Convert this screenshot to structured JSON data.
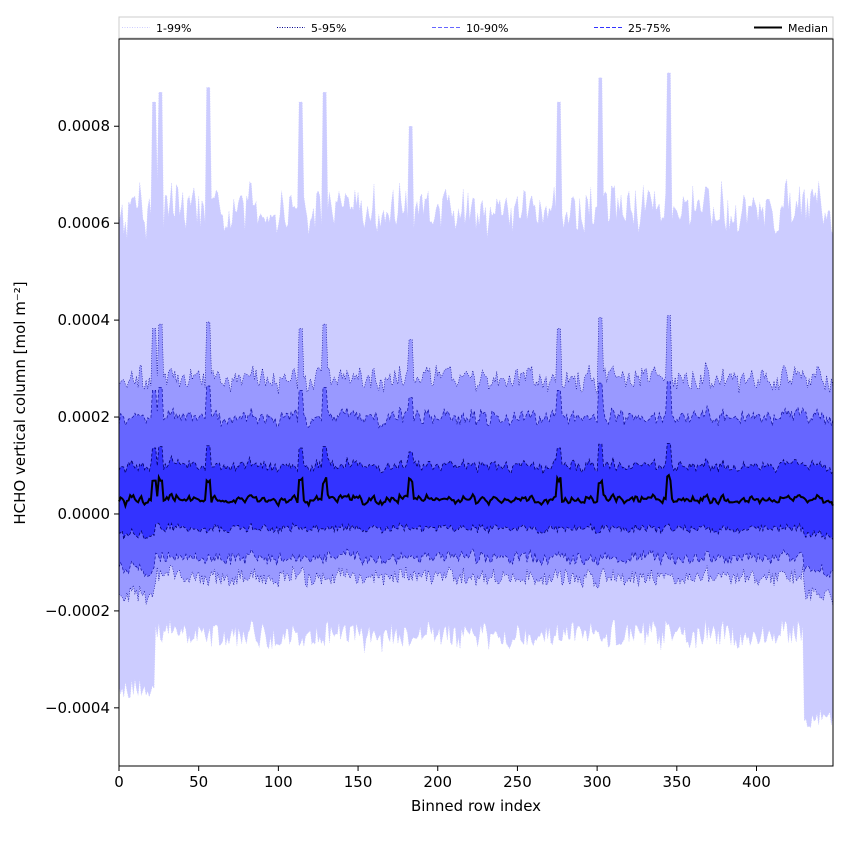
{
  "chart_data": {
    "type": "area",
    "title": "",
    "xlabel": "Binned row index",
    "ylabel": "HCHO vertical column [mol m⁻²]",
    "xlim": [
      0,
      448
    ],
    "ylim": [
      -0.00052,
      0.00098
    ],
    "x_ticks": [
      0,
      50,
      100,
      150,
      200,
      250,
      300,
      350,
      400
    ],
    "x_tick_labels": [
      "0",
      "50",
      "100",
      "150",
      "200",
      "250",
      "300",
      "350",
      "400"
    ],
    "y_ticks": [
      -0.0004,
      -0.0002,
      0.0,
      0.0002,
      0.0004,
      0.0006,
      0.0008
    ],
    "y_tick_labels": [
      "−0.0004",
      "−0.0002",
      "0.0000",
      "0.0002",
      "0.0004",
      "0.0006",
      "0.0008"
    ],
    "grid": false,
    "legend_position": "top, outside plot, spanning full width",
    "legend": [
      {
        "label": "1-99%",
        "color": "#ccccff",
        "style": "dotted"
      },
      {
        "label": "5-95%",
        "color": "#00008b",
        "style": "dotted"
      },
      {
        "label": "10-90%",
        "color": "#6666ff",
        "style": "dashed"
      },
      {
        "label": "25-75%",
        "color": "#3333ff",
        "style": "dashed"
      },
      {
        "label": "Median",
        "color": "#000000",
        "style": "solid"
      }
    ],
    "bands": [
      {
        "name": "1-99%",
        "fill": "#ccccff",
        "upper_mean": 0.00063,
        "lower_mean": -0.00025,
        "upper_amp": 6e-05,
        "lower_amp": 3e-05
      },
      {
        "name": "5-95%",
        "fill": "#9999ff",
        "upper_mean": 0.00028,
        "lower_mean": -0.00013,
        "upper_amp": 3e-05,
        "lower_amp": 2e-05
      },
      {
        "name": "10-90%",
        "fill": "#6666ff",
        "upper_mean": 0.0002,
        "lower_mean": -9e-05,
        "upper_amp": 2e-05,
        "lower_amp": 1.5e-05
      },
      {
        "name": "25-75%",
        "fill": "#3333ff",
        "upper_mean": 0.0001,
        "lower_mean": -3e-05,
        "upper_amp": 1.5e-05,
        "lower_amp": 1e-05
      }
    ],
    "median_mean": 3e-05,
    "spikes": [
      {
        "x": 22,
        "upper": 0.00085
      },
      {
        "x": 26,
        "upper": 0.00087
      },
      {
        "x": 56,
        "upper": 0.00088
      },
      {
        "x": 114,
        "upper": 0.00085
      },
      {
        "x": 129,
        "upper": 0.00087
      },
      {
        "x": 183,
        "upper": 0.0008
      },
      {
        "x": 276,
        "upper": 0.00085
      },
      {
        "x": 302,
        "upper": 0.0009
      },
      {
        "x": 345,
        "upper": 0.00091
      }
    ],
    "edge_low": [
      {
        "x_from": 0,
        "x_to": 22,
        "lower": -0.00036
      },
      {
        "x_from": 430,
        "x_to": 448,
        "lower": -0.00042
      }
    ]
  }
}
